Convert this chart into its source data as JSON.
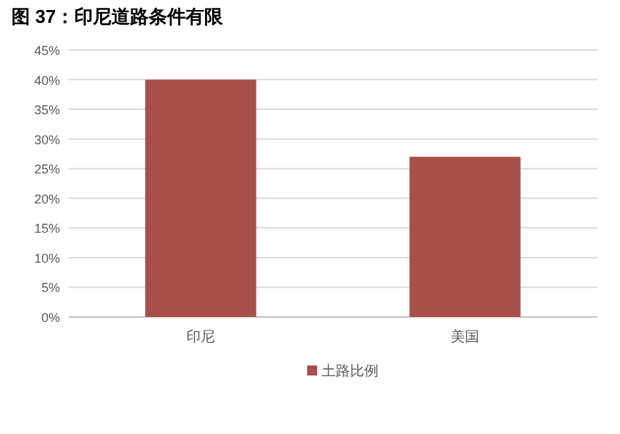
{
  "chart_data": {
    "type": "bar",
    "title": "图 37：印尼道路条件有限",
    "categories": [
      "印尼",
      "美国"
    ],
    "series": [
      {
        "name": "土路比例",
        "color": "#a84f4a",
        "values": [
          40,
          27
        ]
      }
    ],
    "ylim": [
      0,
      45
    ],
    "yticks": [
      {
        "value": 0,
        "label": "0%"
      },
      {
        "value": 5,
        "label": "5%"
      },
      {
        "value": 10,
        "label": "10%"
      },
      {
        "value": 15,
        "label": "15%"
      },
      {
        "value": 20,
        "label": "20%"
      },
      {
        "value": 25,
        "label": "25%"
      },
      {
        "value": 30,
        "label": "30%"
      },
      {
        "value": 35,
        "label": "35%"
      },
      {
        "value": 40,
        "label": "40%"
      },
      {
        "value": 45,
        "label": "45%"
      }
    ],
    "grid": "y",
    "legend": "bottom"
  }
}
